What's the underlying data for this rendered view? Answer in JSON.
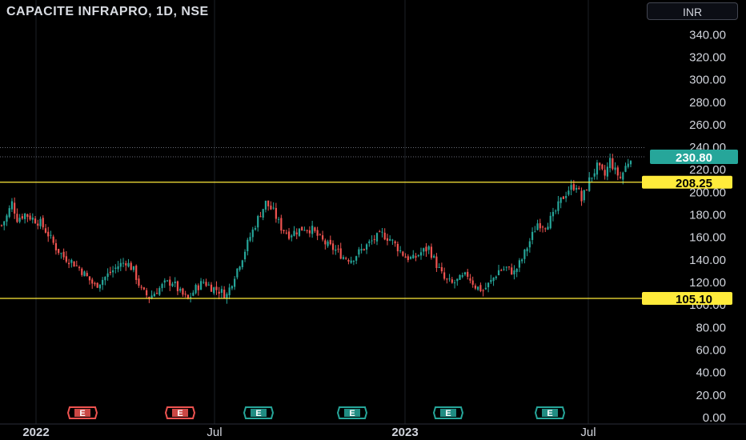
{
  "header": {
    "title": "CAPACITE INFRAPRO, 1D, NSE",
    "currency_button": "INR"
  },
  "colors": {
    "background": "#000000",
    "up": "#26a69a",
    "down": "#ef5350",
    "level_line": "#ffeb3b",
    "grid": "#1c1f26",
    "axis_text": "#d1d4dc",
    "price_label_bg": "#26a69a"
  },
  "chart_data": {
    "type": "candlestick",
    "symbol": "CAPACITE INFRAPRO",
    "interval": "1D",
    "exchange": "NSE",
    "currency": "INR",
    "y_axis": {
      "ylim": [
        0,
        355
      ],
      "ticks": [
        "0.00",
        "20.00",
        "40.00",
        "60.00",
        "80.00",
        "100.00",
        "120.00",
        "140.00",
        "160.00",
        "180.00",
        "200.00",
        "220.00",
        "240.00",
        "260.00",
        "280.00",
        "300.00",
        "320.00",
        "340.00"
      ]
    },
    "x_axis": {
      "ticks": [
        "2022",
        "Jul",
        "2023",
        "Jul"
      ]
    },
    "last_price": {
      "value": 230.8,
      "label": "230.80"
    },
    "horizontal_levels": [
      {
        "value": 208.25,
        "label": "208.25"
      },
      {
        "value": 105.1,
        "label": "105.10"
      }
    ],
    "earnings_markers": [
      {
        "label": "E",
        "status": "down"
      },
      {
        "label": "E",
        "status": "down"
      },
      {
        "label": "E",
        "status": "up"
      },
      {
        "label": "E",
        "status": "up"
      },
      {
        "label": "E",
        "status": "up"
      },
      {
        "label": "E",
        "status": "up"
      }
    ],
    "price_path": [
      [
        0,
        170
      ],
      [
        2,
        178
      ],
      [
        4,
        190
      ],
      [
        6,
        176
      ],
      [
        9,
        180
      ],
      [
        12,
        176
      ],
      [
        15,
        172
      ],
      [
        18,
        162
      ],
      [
        21,
        150
      ],
      [
        24,
        142
      ],
      [
        27,
        138
      ],
      [
        30,
        132
      ],
      [
        33,
        124
      ],
      [
        36,
        116
      ],
      [
        39,
        122
      ],
      [
        42,
        128
      ],
      [
        45,
        134
      ],
      [
        48,
        138
      ],
      [
        51,
        130
      ],
      [
        54,
        112
      ],
      [
        57,
        106
      ],
      [
        60,
        112
      ],
      [
        63,
        118
      ],
      [
        66,
        120
      ],
      [
        69,
        110
      ],
      [
        72,
        104
      ],
      [
        75,
        114
      ],
      [
        78,
        120
      ],
      [
        81,
        115
      ],
      [
        84,
        112
      ],
      [
        87,
        108
      ],
      [
        90,
        126
      ],
      [
        93,
        142
      ],
      [
        96,
        160
      ],
      [
        99,
        176
      ],
      [
        102,
        190
      ],
      [
        105,
        182
      ],
      [
        108,
        168
      ],
      [
        111,
        162
      ],
      [
        114,
        165
      ],
      [
        117,
        168
      ],
      [
        120,
        166
      ],
      [
        123,
        158
      ],
      [
        126,
        152
      ],
      [
        129,
        148
      ],
      [
        132,
        142
      ],
      [
        135,
        140
      ],
      [
        138,
        146
      ],
      [
        141,
        152
      ],
      [
        144,
        158
      ],
      [
        147,
        162
      ],
      [
        150,
        158
      ],
      [
        153,
        150
      ],
      [
        156,
        142
      ],
      [
        159,
        140
      ],
      [
        162,
        146
      ],
      [
        165,
        150
      ],
      [
        168,
        135
      ],
      [
        171,
        122
      ],
      [
        174,
        118
      ],
      [
        177,
        122
      ],
      [
        180,
        126
      ],
      [
        183,
        116
      ],
      [
        186,
        112
      ],
      [
        189,
        120
      ],
      [
        192,
        130
      ],
      [
        195,
        132
      ],
      [
        198,
        128
      ],
      [
        201,
        140
      ],
      [
        204,
        156
      ],
      [
        207,
        172
      ],
      [
        210,
        170
      ],
      [
        213,
        178
      ],
      [
        216,
        192
      ],
      [
        219,
        202
      ],
      [
        222,
        206
      ],
      [
        224,
        192
      ],
      [
        227,
        210
      ],
      [
        230,
        222
      ],
      [
        233,
        214
      ],
      [
        235,
        228
      ],
      [
        237,
        218
      ],
      [
        239,
        212
      ],
      [
        241,
        222
      ],
      [
        243,
        231
      ]
    ]
  }
}
